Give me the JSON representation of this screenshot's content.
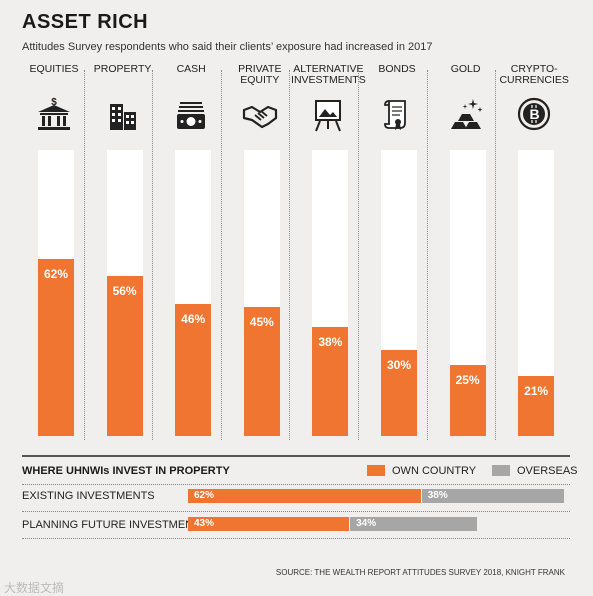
{
  "header": {
    "title": "ASSET RICH",
    "subtitle": "Attitudes Survey respondents who said their clients’ exposure had increased in 2017"
  },
  "chart_data": [
    {
      "type": "bar",
      "categories": [
        "EQUITIES",
        "PROPERTY",
        "CASH",
        "PRIVATE EQUITY",
        "ALTERNATIVE INVESTMENTS",
        "BONDS",
        "GOLD",
        "CRYPTO-CURRENCIES"
      ],
      "values": [
        62,
        56,
        46,
        45,
        38,
        30,
        25,
        21
      ],
      "value_labels": [
        "62%",
        "56%",
        "46%",
        "45%",
        "38%",
        "30%",
        "25%",
        "21%"
      ],
      "ylim": [
        0,
        100
      ],
      "grid": false,
      "bar_color": "#ef7531",
      "track_color": "#ffffff",
      "icons": [
        "bank-icon",
        "buildings-icon",
        "banknotes-icon",
        "handshake-icon",
        "easel-icon",
        "scroll-icon",
        "gold-bars-icon",
        "bitcoin-icon"
      ]
    },
    {
      "type": "bar",
      "orientation": "horizontal",
      "stacked": true,
      "title": "WHERE UHNWIs INVEST IN PROPERTY",
      "categories": [
        "EXISTING INVESTMENTS",
        "PLANNING FUTURE INVESTMENTS"
      ],
      "series": [
        {
          "name": "OWN COUNTRY",
          "color": "#ef7531",
          "values": [
            62,
            43
          ],
          "labels": [
            "62%",
            "43%"
          ]
        },
        {
          "name": "OVERSEAS",
          "color": "#a6a6a6",
          "values": [
            38,
            34
          ],
          "labels": [
            "38%",
            "34%"
          ]
        }
      ],
      "xlim": [
        0,
        100
      ],
      "legend": "top-right"
    }
  ],
  "labels": {
    "col_labels": [
      "EQUITIES",
      "PROPERTY",
      "CASH",
      "PRIVATE\nEQUITY",
      "ALTERNATIVE\nINVESTMENTS",
      "BONDS",
      "GOLD",
      "CRYPTO-\nCURRENCIES"
    ]
  },
  "footer": {
    "source": "SOURCE: THE WEALTH REPORT ATTITUDES SURVEY 2018, KNIGHT FRANK",
    "watermark": "大数据文摘"
  }
}
